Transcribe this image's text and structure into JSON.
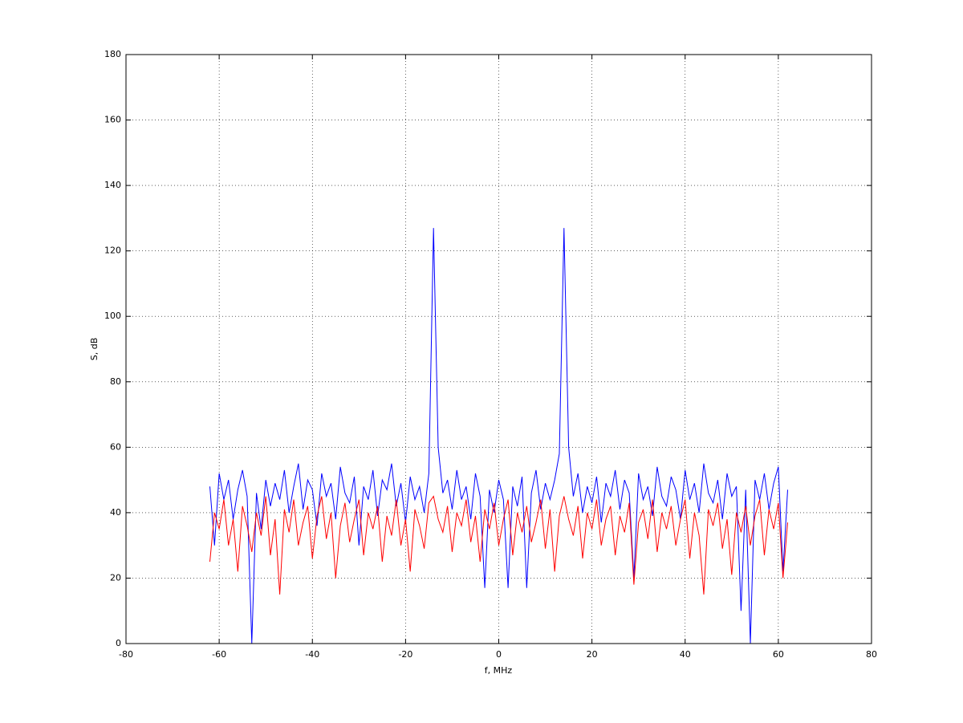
{
  "chart_data": {
    "type": "line",
    "x_label": "f, MHz",
    "y_label": "S, dB",
    "xlim": [
      -80,
      80
    ],
    "ylim": [
      0,
      180
    ],
    "xticks": [
      -80,
      -60,
      -40,
      -20,
      0,
      20,
      40,
      60,
      80
    ],
    "yticks": [
      0,
      20,
      40,
      60,
      80,
      100,
      120,
      140,
      160,
      180
    ],
    "grid": true,
    "x": [
      -62,
      -61,
      -60,
      -59,
      -58,
      -57,
      -56,
      -55,
      -54,
      -53,
      -52,
      -51,
      -50,
      -49,
      -48,
      -47,
      -46,
      -45,
      -44,
      -43,
      -42,
      -41,
      -40,
      -39,
      -38,
      -37,
      -36,
      -35,
      -34,
      -33,
      -32,
      -31,
      -30,
      -29,
      -28,
      -27,
      -26,
      -25,
      -24,
      -23,
      -22,
      -21,
      -20,
      -19,
      -18,
      -17,
      -16,
      -15,
      -14,
      -13,
      -12,
      -11,
      -10,
      -9,
      -8,
      -7,
      -6,
      -5,
      -4,
      -3,
      -2,
      -1,
      0,
      1,
      2,
      3,
      4,
      5,
      6,
      7,
      8,
      9,
      10,
      11,
      12,
      13,
      14,
      15,
      16,
      17,
      18,
      19,
      20,
      21,
      22,
      23,
      24,
      25,
      26,
      27,
      28,
      29,
      30,
      31,
      32,
      33,
      34,
      35,
      36,
      37,
      38,
      39,
      40,
      41,
      42,
      43,
      44,
      45,
      46,
      47,
      48,
      49,
      50,
      51,
      52,
      53,
      54,
      55,
      56,
      57,
      58,
      59,
      60,
      61,
      62
    ],
    "series": [
      {
        "color": "#0000ff",
        "values": [
          48,
          30,
          52,
          44,
          50,
          38,
          47,
          53,
          45,
          0,
          46,
          35,
          50,
          42,
          49,
          44,
          53,
          40,
          48,
          55,
          41,
          50,
          47,
          36,
          52,
          45,
          49,
          38,
          54,
          46,
          43,
          51,
          30,
          48,
          44,
          53,
          39,
          50,
          47,
          55,
          42,
          49,
          37,
          51,
          44,
          48,
          40,
          52,
          127,
          60,
          46,
          50,
          41,
          53,
          44,
          48,
          38,
          52,
          45,
          17,
          47,
          40,
          50,
          44,
          17,
          48,
          42,
          51,
          17,
          46,
          53,
          41,
          49,
          44,
          50,
          58,
          127,
          60,
          45,
          52,
          40,
          48,
          43,
          51,
          37,
          49,
          45,
          53,
          41,
          50,
          46,
          20,
          52,
          44,
          48,
          39,
          54,
          45,
          42,
          51,
          47,
          38,
          53,
          44,
          49,
          40,
          55,
          46,
          43,
          50,
          38,
          52,
          45,
          48,
          10,
          47,
          0,
          50,
          44,
          52,
          41,
          49,
          54,
          22,
          47
        ]
      },
      {
        "color": "#ff0000",
        "values": [
          25,
          40,
          35,
          44,
          30,
          38,
          22,
          42,
          36,
          28,
          40,
          33,
          45,
          27,
          38,
          15,
          41,
          34,
          44,
          30,
          37,
          42,
          26,
          39,
          45,
          32,
          40,
          20,
          36,
          43,
          31,
          38,
          44,
          27,
          40,
          35,
          42,
          25,
          39,
          33,
          44,
          30,
          38,
          22,
          41,
          36,
          29,
          43,
          45,
          38,
          34,
          42,
          28,
          40,
          36,
          44,
          31,
          39,
          25,
          41,
          35,
          43,
          30,
          38,
          44,
          27,
          40,
          34,
          42,
          31,
          37,
          44,
          29,
          41,
          22,
          39,
          45,
          38,
          33,
          42,
          26,
          40,
          35,
          44,
          30,
          38,
          42,
          27,
          39,
          34,
          43,
          18,
          37,
          41,
          32,
          44,
          28,
          40,
          35,
          42,
          30,
          38,
          44,
          26,
          40,
          33,
          15,
          41,
          36,
          43,
          29,
          38,
          21,
          40,
          34,
          42,
          30,
          39,
          44,
          27,
          41,
          35,
          43,
          20,
          37
        ]
      }
    ]
  }
}
